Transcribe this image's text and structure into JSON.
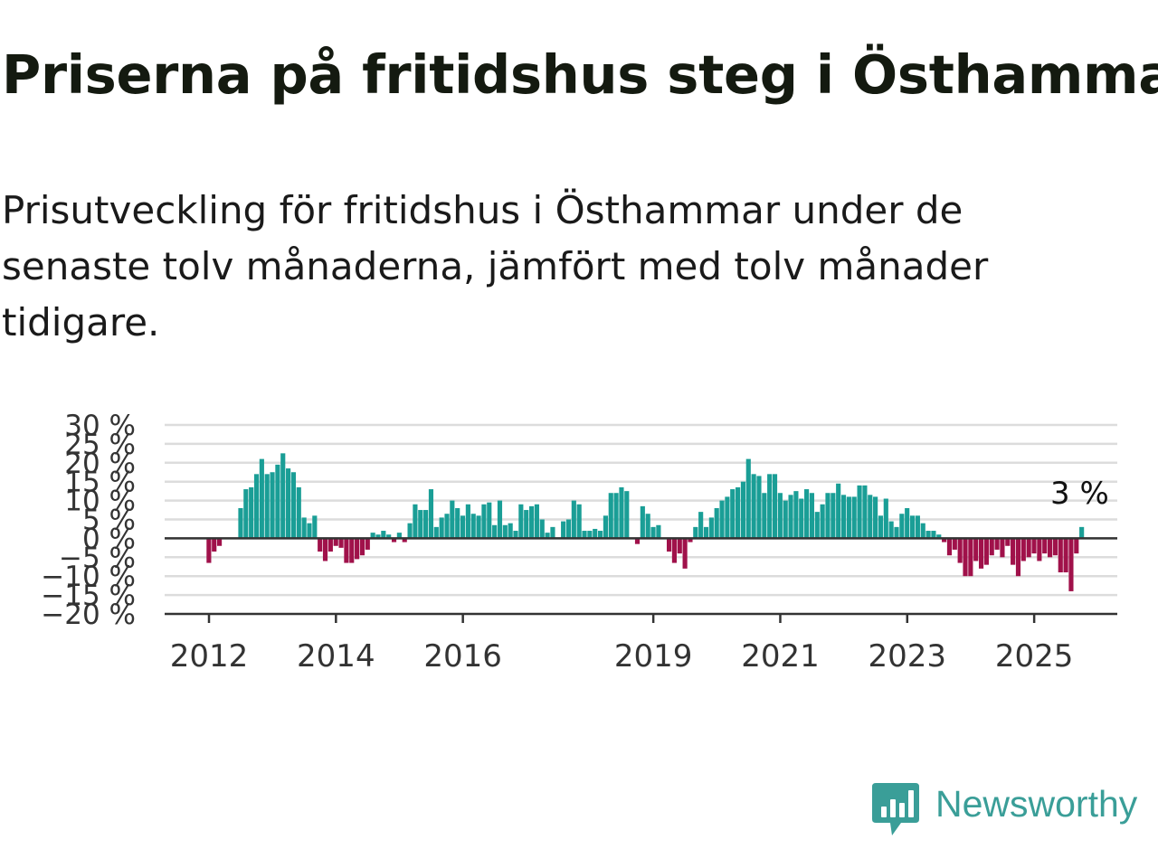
{
  "header": {
    "title": "Priserna på fritidshus steg i Östhammar",
    "subtitle": "Prisutveckling för fritidshus i Östhammar under de senaste tolv månaderna, jämfört med tolv månader tidigare."
  },
  "brand": {
    "name": "Newsworthy"
  },
  "colors": {
    "positive": "#1a9e96",
    "negative": "#a0114a",
    "brand": "#3a9e98"
  },
  "chart_data": {
    "type": "bar",
    "title": "Priserna på fritidshus steg i Östhammar",
    "subtitle": "Prisutveckling för fritidshus i Östhammar under de senaste tolv månaderna, jämfört med tolv månader tidigare.",
    "ylim": [
      -20,
      30
    ],
    "yticks": [
      30,
      25,
      20,
      15,
      10,
      5,
      0,
      -5,
      -10,
      -15,
      -20
    ],
    "ytick_labels": [
      "30 %",
      "25 %",
      "20 %",
      "15 %",
      "10 %",
      "5 %",
      "0 %",
      "−5 %",
      "−10 %",
      "−15 %",
      "−20 %"
    ],
    "xtick_labels": [
      "2012",
      "2014",
      "2016",
      "2019",
      "2021",
      "2023",
      "2025"
    ],
    "xtick_years": [
      2012,
      2014,
      2016,
      2019,
      2021,
      2023,
      2025
    ],
    "grid": true,
    "start": "2012-01",
    "end_label": "3 %",
    "values": [
      -6.5,
      -3.5,
      -2,
      null,
      null,
      null,
      8,
      13,
      13.5,
      17,
      21,
      17,
      17.5,
      19.5,
      22.5,
      18.5,
      17.5,
      13.5,
      5.5,
      4,
      6,
      -3.5,
      -6,
      -3.5,
      -2,
      -2.5,
      -6.5,
      -6.5,
      -5.5,
      -4.5,
      -3,
      1.5,
      1,
      2,
      1,
      -1,
      1.5,
      -1,
      4,
      9,
      7.5,
      7.5,
      13,
      3,
      5.5,
      6.5,
      10,
      8,
      6,
      9,
      6.5,
      6,
      9,
      9.5,
      3.5,
      10,
      3.5,
      4,
      2,
      9,
      7.5,
      8.5,
      9,
      5,
      1.5,
      3,
      null,
      4.5,
      5,
      10,
      9,
      2,
      2,
      2.5,
      2,
      6,
      12,
      12,
      13.5,
      12.5,
      null,
      -1.5,
      8.5,
      6.5,
      3,
      3.5,
      null,
      -3.5,
      -6.5,
      -4,
      -8,
      -1,
      3,
      7,
      3,
      5.5,
      8,
      10,
      11,
      13,
      13.5,
      15,
      21,
      17,
      16.5,
      12,
      17,
      17,
      12,
      10,
      11.5,
      12.5,
      10.5,
      13,
      12,
      7,
      9,
      12,
      12,
      14.5,
      11.5,
      11,
      11,
      14,
      14,
      11.5,
      11,
      6,
      10.5,
      4.5,
      3,
      6.5,
      8,
      6,
      6,
      4,
      2,
      2,
      1,
      -1,
      -4.5,
      -3,
      -6.5,
      -10,
      -10,
      -6,
      -8,
      -7,
      -4.5,
      -3,
      -5,
      -2,
      -7,
      -10,
      -6,
      -5,
      -4,
      -6,
      -4,
      -5,
      -4.5,
      -9,
      -9,
      -14,
      -4,
      3
    ]
  }
}
